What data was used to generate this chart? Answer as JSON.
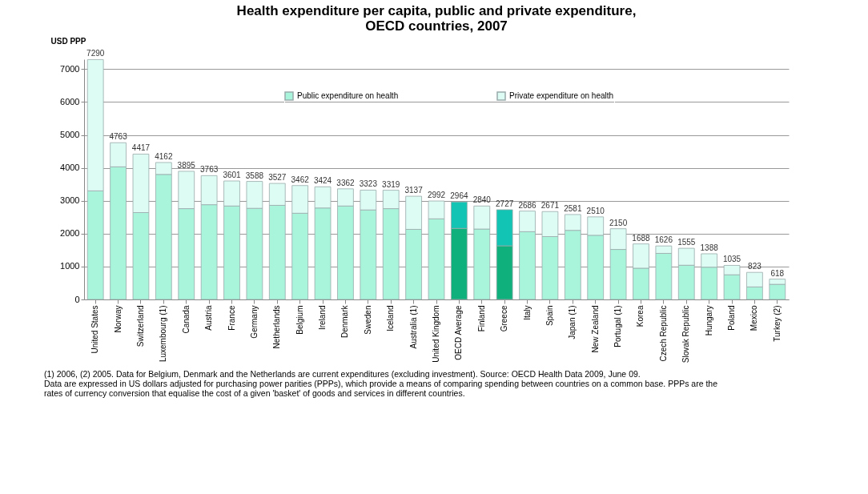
{
  "chart_data": {
    "type": "bar",
    "stacked": true,
    "title": "Health expenditure per capita, public and private expenditure, OECD countries, 2007",
    "ylabel": "USD PPP",
    "categories": [
      "United States",
      "Norway",
      "Switzerland",
      "Luxembourg (1)",
      "Canada",
      "Austria",
      "France",
      "Germany",
      "Netherlands",
      "Belgium",
      "Ireland",
      "Denmark",
      "Sweden",
      "Iceland",
      "Australia (1)",
      "United Kingdom",
      "OECD Average",
      "Finland",
      "Greece",
      "Italy",
      "Spain",
      "Japan (1)",
      "New Zealand",
      "Portugal (1)",
      "Korea",
      "Czech Republic",
      "Slovak Republic",
      "Hungary",
      "Poland",
      "Mexico",
      "Turkey (2)"
    ],
    "series": [
      {
        "name": "Public expenditure on health",
        "color": "#a8f5dc",
        "colors": [
          "#a8f5dc",
          "#a8f5dc",
          "#a8f5dc",
          "#a8f5dc",
          "#a8f5dc",
          "#a8f5dc",
          "#a8f5dc",
          "#a8f5dc",
          "#a8f5dc",
          "#a8f5dc",
          "#a8f5dc",
          "#a8f5dc",
          "#a8f5dc",
          "#a8f5dc",
          "#a8f5dc",
          "#a8f5dc",
          "#10b07c",
          "#a8f5dc",
          "#10b07c",
          "#a8f5dc",
          "#a8f5dc",
          "#a8f5dc",
          "#a8f5dc",
          "#a8f5dc",
          "#a8f5dc",
          "#a8f5dc",
          "#a8f5dc",
          "#a8f5dc",
          "#a8f5dc",
          "#a8f5dc",
          "#a8f5dc"
        ],
        "values": [
          3300,
          4030,
          2640,
          3800,
          2760,
          2880,
          2840,
          2770,
          2860,
          2620,
          2780,
          2840,
          2720,
          2760,
          2130,
          2450,
          2160,
          2140,
          1630,
          2060,
          1910,
          2100,
          1950,
          1520,
          950,
          1400,
          1040,
          980,
          750,
          380,
          460
        ]
      },
      {
        "name": "Private expenditure on health",
        "color": "#dcfcf4",
        "colors": [
          "#dcfcf4",
          "#dcfcf4",
          "#dcfcf4",
          "#dcfcf4",
          "#dcfcf4",
          "#dcfcf4",
          "#dcfcf4",
          "#dcfcf4",
          "#dcfcf4",
          "#dcfcf4",
          "#dcfcf4",
          "#dcfcf4",
          "#dcfcf4",
          "#dcfcf4",
          "#dcfcf4",
          "#dcfcf4",
          "#12c4b4",
          "#dcfcf4",
          "#12c4b4",
          "#dcfcf4",
          "#dcfcf4",
          "#dcfcf4",
          "#dcfcf4",
          "#dcfcf4",
          "#dcfcf4",
          "#dcfcf4",
          "#dcfcf4",
          "#dcfcf4",
          "#dcfcf4",
          "#dcfcf4",
          "#dcfcf4"
        ],
        "values": [
          3990,
          733,
          1777,
          362,
          1135,
          883,
          761,
          818,
          667,
          842,
          644,
          522,
          603,
          559,
          1007,
          542,
          804,
          700,
          1097,
          626,
          761,
          481,
          560,
          630,
          738,
          226,
          515,
          408,
          285,
          443,
          158
        ]
      }
    ],
    "totals": [
      "7290",
      "4763",
      "4417",
      "4162",
      "3895",
      "3763",
      "3601",
      "3588",
      "3527",
      "3462",
      "3424",
      "3362",
      "3323",
      "3319",
      "3137",
      "2992",
      "2964",
      "2840",
      "2727",
      "2686",
      "2671",
      "2581",
      "2510",
      "2150",
      "1688",
      "1626",
      "1555",
      "1388",
      "1035",
      "823",
      "618"
    ],
    "ylim": [
      0,
      7300
    ],
    "yticks": [
      0,
      1000,
      2000,
      3000,
      4000,
      5000,
      6000,
      7000
    ],
    "grid": "y",
    "legend": "top",
    "annotations": [
      "(1) 2006, (2) 2005.  Data for Belgium, Denmark and the Netherlands are current expenditures (excluding investment).  Source: OECD Health Data 2009, June 09.",
      "Data are expressed in US dollars adjusted for purchasing power parities (PPPs), which provide a means of comparing spending between countries on a common base. PPPs are the rates of currency conversion that equalise the cost of a given 'basket' of goods and services in different countries."
    ]
  }
}
